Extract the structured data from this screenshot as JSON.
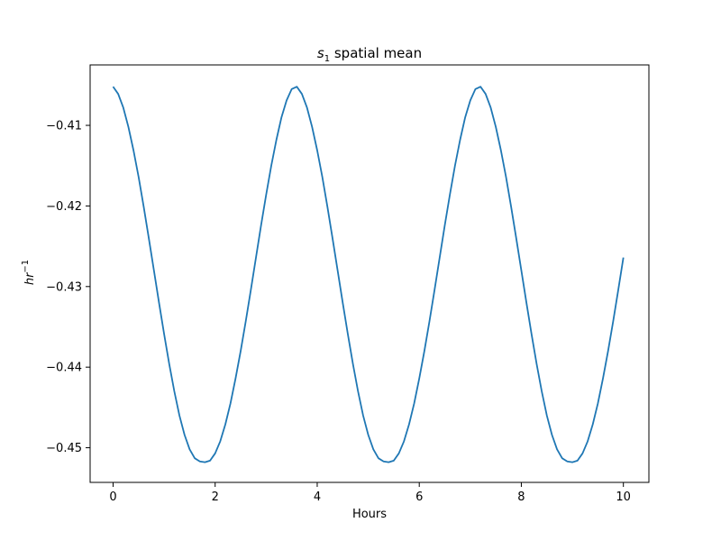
{
  "chart_data": {
    "type": "line",
    "title": {
      "symbol": "s",
      "subscript": "1",
      "text": " spatial mean"
    },
    "xlabel": "Hours",
    "ylabel": {
      "base": "hr",
      "superscript": "−1"
    },
    "xlim": [
      -0.45,
      10.5
    ],
    "ylim": [
      -0.4543,
      -0.4025
    ],
    "xticks": [
      0,
      2,
      4,
      6,
      8,
      10
    ],
    "xtick_labels": [
      "0",
      "2",
      "4",
      "6",
      "8",
      "10"
    ],
    "yticks": [
      -0.41,
      -0.42,
      -0.43,
      -0.44,
      -0.45
    ],
    "ytick_labels": [
      "−0.41",
      "−0.42",
      "−0.43",
      "−0.44",
      "−0.45"
    ],
    "grid": false,
    "series": [
      {
        "color": "#1f77b4",
        "x": [
          0,
          0.1,
          0.2,
          0.3,
          0.4,
          0.5,
          0.6,
          0.7,
          0.8,
          0.9,
          1.0,
          1.1,
          1.2,
          1.3,
          1.4,
          1.5,
          1.6,
          1.7,
          1.8,
          1.9,
          2.0,
          2.1,
          2.2,
          2.3,
          2.4,
          2.5,
          2.6,
          2.7,
          2.8,
          2.9,
          3.0,
          3.1,
          3.2,
          3.3,
          3.4,
          3.5,
          3.6,
          3.7,
          3.8,
          3.9,
          4.0,
          4.1,
          4.2,
          4.3,
          4.4,
          4.5,
          4.6,
          4.7,
          4.8,
          4.9,
          5.0,
          5.1,
          5.2,
          5.3,
          5.4,
          5.5,
          5.6,
          5.7,
          5.8,
          5.9,
          6.0,
          6.1,
          6.2,
          6.3,
          6.4,
          6.5,
          6.6,
          6.7,
          6.8,
          6.9,
          7.0,
          7.1,
          7.2,
          7.3,
          7.4,
          7.5,
          7.6,
          7.7,
          7.8,
          7.9,
          8.0,
          8.1,
          8.2,
          8.3,
          8.4,
          8.5,
          8.6,
          8.7,
          8.8,
          8.9,
          9.0,
          9.1,
          9.2,
          9.3,
          9.4,
          9.5,
          9.6,
          9.7,
          9.8,
          9.9,
          10.0
        ],
        "y": [
          -0.4052,
          -0.4061,
          -0.4078,
          -0.4102,
          -0.4131,
          -0.4164,
          -0.4201,
          -0.424,
          -0.428,
          -0.432,
          -0.4359,
          -0.4396,
          -0.443,
          -0.446,
          -0.4484,
          -0.4502,
          -0.4513,
          -0.4517,
          -0.4518,
          -0.4516,
          -0.4507,
          -0.4492,
          -0.4471,
          -0.4445,
          -0.4414,
          -0.438,
          -0.4343,
          -0.4304,
          -0.4264,
          -0.4224,
          -0.4186,
          -0.415,
          -0.4118,
          -0.409,
          -0.4069,
          -0.4055,
          -0.4052,
          -0.4061,
          -0.4078,
          -0.4102,
          -0.4131,
          -0.4164,
          -0.4201,
          -0.424,
          -0.428,
          -0.432,
          -0.4359,
          -0.4396,
          -0.443,
          -0.446,
          -0.4484,
          -0.4502,
          -0.4513,
          -0.4517,
          -0.4518,
          -0.4516,
          -0.4507,
          -0.4492,
          -0.4471,
          -0.4445,
          -0.4414,
          -0.438,
          -0.4343,
          -0.4304,
          -0.4264,
          -0.4224,
          -0.4186,
          -0.415,
          -0.4118,
          -0.409,
          -0.4069,
          -0.4055,
          -0.4052,
          -0.4061,
          -0.4078,
          -0.4102,
          -0.4131,
          -0.4164,
          -0.4201,
          -0.424,
          -0.428,
          -0.432,
          -0.4359,
          -0.4396,
          -0.443,
          -0.446,
          -0.4484,
          -0.4502,
          -0.4513,
          -0.4517,
          -0.4518,
          -0.4516,
          -0.4507,
          -0.4492,
          -0.4471,
          -0.4445,
          -0.4414,
          -0.438,
          -0.4343,
          -0.4304,
          -0.4264
        ]
      }
    ]
  }
}
